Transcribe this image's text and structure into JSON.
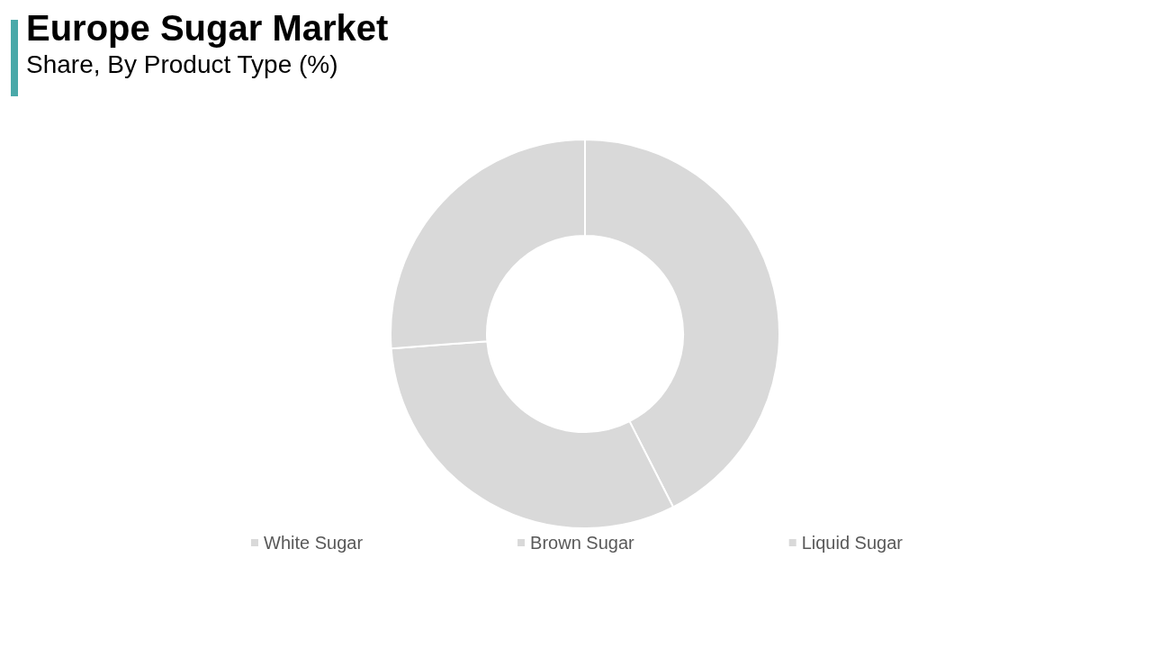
{
  "chart_data": {
    "type": "donut",
    "title": "Europe Sugar Market",
    "subtitle": "Share, By Product Type (%)",
    "categories": [
      "White Sugar",
      "Brown Sugar",
      "Liquid Sugar"
    ],
    "values": [
      42.5,
      31.3,
      26.2
    ],
    "colors": [
      "#d9d9d9",
      "#d9d9d9",
      "#d9d9d9"
    ],
    "legend": "bottom"
  }
}
